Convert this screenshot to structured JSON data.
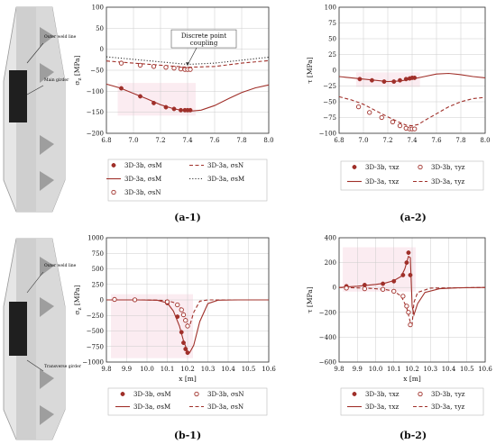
{
  "colors": {
    "accent": "#a0302a",
    "band": "#f7dde6",
    "grid": "#cccccc",
    "axis": "#333333",
    "girder_light": "#e2e2e2",
    "girder_mid": "#bdbdbd",
    "girder_dark": "#222222"
  },
  "illustrations": [
    {
      "labels": [
        "Outer weld line",
        "Main girder"
      ]
    },
    {
      "labels": [
        "Outer weld line",
        "Transverse girder"
      ]
    }
  ],
  "chart_data": [
    {
      "id": "a1",
      "type": "scatter",
      "caption": "(a-1)",
      "xlabel": "",
      "ylabel": "σ_z [MPa]",
      "xlim": [
        6.8,
        8.0
      ],
      "ylim": [
        -200,
        100
      ],
      "xticks": [
        6.8,
        7.0,
        7.2,
        7.4,
        7.6,
        7.8,
        8.0
      ],
      "yticks": [
        -200,
        -150,
        -100,
        -50,
        0,
        50,
        100
      ],
      "xtick_labels": [
        "6.8",
        "7.0",
        "7.2",
        "7.4",
        "7.6",
        "7.8",
        "8.0"
      ],
      "ytick_labels": [
        "−200",
        "−150",
        "−100",
        "−50",
        "0",
        "50",
        "100"
      ],
      "annotation": {
        "text": [
          "Discrete point",
          "coupling"
        ],
        "x": 7.52,
        "y": 27,
        "target_x": 7.4,
        "target_y": -42
      },
      "series": [
        {
          "name": "3D-3b, σsM",
          "style": "dot",
          "points": [
            [
              6.91,
              -93
            ],
            [
              7.05,
              -112
            ],
            [
              7.15,
              -128
            ],
            [
              7.24,
              -138
            ],
            [
              7.3,
              -142
            ],
            [
              7.35,
              -145
            ],
            [
              7.38,
              -145
            ],
            [
              7.4,
              -145
            ],
            [
              7.42,
              -145
            ]
          ]
        },
        {
          "name": "3D-3b, σsN",
          "style": "circle",
          "points": [
            [
              6.91,
              -33
            ],
            [
              7.05,
              -38
            ],
            [
              7.15,
              -41
            ],
            [
              7.24,
              -43
            ],
            [
              7.3,
              -45
            ],
            [
              7.35,
              -47
            ],
            [
              7.38,
              -48
            ],
            [
              7.4,
              -48
            ],
            [
              7.42,
              -48
            ]
          ]
        },
        {
          "name": "3D-3a, σsM",
          "style": "solid",
          "points": [
            [
              6.8,
              -83
            ],
            [
              6.9,
              -92
            ],
            [
              7.0,
              -105
            ],
            [
              7.1,
              -118
            ],
            [
              7.2,
              -132
            ],
            [
              7.3,
              -142
            ],
            [
              7.4,
              -148
            ],
            [
              7.5,
              -145
            ],
            [
              7.6,
              -134
            ],
            [
              7.7,
              -118
            ],
            [
              7.8,
              -103
            ],
            [
              7.9,
              -92
            ],
            [
              8.0,
              -85
            ]
          ]
        },
        {
          "name": "3D-3a, σsN",
          "style": "dashed",
          "points": [
            [
              6.8,
              -28
            ],
            [
              7.0,
              -33
            ],
            [
              7.2,
              -38
            ],
            [
              7.4,
              -43
            ],
            [
              7.6,
              -41
            ],
            [
              7.8,
              -33
            ],
            [
              8.0,
              -27
            ]
          ]
        },
        {
          "name": "3D-3a, σsM",
          "style": "dotted",
          "points": [
            [
              6.8,
              -18
            ],
            [
              7.0,
              -24
            ],
            [
              7.2,
              -30
            ],
            [
              7.4,
              -36
            ],
            [
              7.6,
              -33
            ],
            [
              7.8,
              -26
            ],
            [
              8.0,
              -19
            ]
          ]
        }
      ],
      "legend": [
        {
          "key": "a1_l0",
          "style": "dot",
          "text": "3D-3b, σsM"
        },
        {
          "key": "a1_l1",
          "style": "dashed",
          "text": "3D-3a, σsN"
        },
        {
          "key": "a1_l2",
          "style": "solid",
          "text": "3D-3a, σsM"
        },
        {
          "key": "a1_l3",
          "style": "dotted",
          "text": "3D-3a, σsM"
        },
        {
          "key": "a1_l4",
          "style": "circle",
          "text": "3D-3b, σsN"
        }
      ]
    },
    {
      "id": "a2",
      "type": "scatter",
      "caption": "(a-2)",
      "xlabel": "",
      "ylabel": "τ [MPa]",
      "xlim": [
        6.8,
        8.0
      ],
      "ylim": [
        -100,
        100
      ],
      "xticks": [
        6.8,
        7.0,
        7.2,
        7.4,
        7.6,
        7.8,
        8.0
      ],
      "yticks": [
        -100,
        -75,
        -50,
        -25,
        0,
        25,
        50,
        75,
        100
      ],
      "xtick_labels": [
        "6.8",
        "7.0",
        "7.2",
        "7.4",
        "7.6",
        "7.8",
        "8.0"
      ],
      "ytick_labels": [
        "−100",
        "−75",
        "−50",
        "−25",
        "0",
        "25",
        "50",
        "75",
        "100"
      ],
      "series": [
        {
          "name": "3D-3b, τxz",
          "style": "dot",
          "points": [
            [
              6.97,
              -14
            ],
            [
              7.07,
              -16
            ],
            [
              7.17,
              -18
            ],
            [
              7.25,
              -18
            ],
            [
              7.3,
              -16
            ],
            [
              7.35,
              -14
            ],
            [
              7.38,
              -13
            ],
            [
              7.4,
              -12
            ],
            [
              7.42,
              -12
            ]
          ]
        },
        {
          "name": "3D-3b, τyz",
          "style": "circle",
          "points": [
            [
              6.96,
              -58
            ],
            [
              7.05,
              -67
            ],
            [
              7.15,
              -75
            ],
            [
              7.24,
              -82
            ],
            [
              7.3,
              -88
            ],
            [
              7.35,
              -92
            ],
            [
              7.38,
              -93
            ],
            [
              7.4,
              -93
            ],
            [
              7.42,
              -93
            ]
          ]
        },
        {
          "name": "3D-3a, τxz",
          "style": "solid",
          "points": [
            [
              6.8,
              -10
            ],
            [
              6.9,
              -12
            ],
            [
              7.0,
              -14
            ],
            [
              7.1,
              -16
            ],
            [
              7.2,
              -18
            ],
            [
              7.3,
              -17
            ],
            [
              7.4,
              -14
            ],
            [
              7.5,
              -10
            ],
            [
              7.6,
              -6
            ],
            [
              7.7,
              -5
            ],
            [
              7.8,
              -7
            ],
            [
              7.9,
              -10
            ],
            [
              8.0,
              -12
            ]
          ]
        },
        {
          "name": "3D-3a, τyz",
          "style": "dashed",
          "points": [
            [
              6.8,
              -42
            ],
            [
              6.9,
              -47
            ],
            [
              7.0,
              -54
            ],
            [
              7.1,
              -64
            ],
            [
              7.2,
              -74
            ],
            [
              7.3,
              -83
            ],
            [
              7.35,
              -87
            ],
            [
              7.4,
              -88
            ],
            [
              7.45,
              -86
            ],
            [
              7.5,
              -80
            ],
            [
              7.6,
              -69
            ],
            [
              7.7,
              -58
            ],
            [
              7.8,
              -50
            ],
            [
              7.9,
              -45
            ],
            [
              8.0,
              -43
            ]
          ]
        }
      ],
      "legend": [
        {
          "key": "a2_l0",
          "style": "dot",
          "text": "3D-3b, τxz"
        },
        {
          "key": "a2_l1",
          "style": "circle",
          "text": "3D-3b, τyz"
        },
        {
          "key": "a2_l2",
          "style": "solid",
          "text": "3D-3a, τxz"
        },
        {
          "key": "a2_l3",
          "style": "dashed",
          "text": "3D-3a, τyz"
        }
      ]
    },
    {
      "id": "b1",
      "type": "scatter",
      "caption": "(b-1)",
      "xlabel": "x [m]",
      "ylabel": "σ_z [MPa]",
      "xlim": [
        9.8,
        10.6
      ],
      "ylim": [
        -1000,
        1000
      ],
      "xticks": [
        9.8,
        9.9,
        10.0,
        10.1,
        10.2,
        10.3,
        10.4,
        10.5,
        10.6
      ],
      "yticks": [
        -1000,
        -750,
        -500,
        -250,
        0,
        250,
        500,
        750,
        1000
      ],
      "xtick_labels": [
        "9.8",
        "9.9",
        "10.0",
        "10.1",
        "10.2",
        "10.3",
        "10.4",
        "10.5",
        "10.6"
      ],
      "ytick_labels": [
        "−1000",
        "−750",
        "−500",
        "−250",
        "0",
        "250",
        "500",
        "750",
        "1000"
      ],
      "series": [
        {
          "name": "3D-3b, σsM",
          "style": "dot",
          "points": [
            [
              9.84,
              5
            ],
            [
              9.94,
              0
            ],
            [
              10.1,
              -50
            ],
            [
              10.15,
              -270
            ],
            [
              10.17,
              -520
            ],
            [
              10.18,
              -690
            ],
            [
              10.19,
              -790
            ],
            [
              10.2,
              -850
            ]
          ]
        },
        {
          "name": "3D-3b, σsN",
          "style": "circle",
          "points": [
            [
              9.84,
              8
            ],
            [
              9.94,
              2
            ],
            [
              10.1,
              -30
            ],
            [
              10.15,
              -80
            ],
            [
              10.17,
              -160
            ],
            [
              10.18,
              -240
            ],
            [
              10.19,
              -330
            ],
            [
              10.2,
              -420
            ]
          ]
        },
        {
          "name": "3D-3a, σsM",
          "style": "solid",
          "points": [
            [
              9.8,
              0
            ],
            [
              9.95,
              0
            ],
            [
              10.05,
              -5
            ],
            [
              10.1,
              -50
            ],
            [
              10.13,
              -180
            ],
            [
              10.16,
              -420
            ],
            [
              10.18,
              -660
            ],
            [
              10.2,
              -830
            ],
            [
              10.21,
              -850
            ],
            [
              10.23,
              -730
            ],
            [
              10.26,
              -350
            ],
            [
              10.3,
              -60
            ],
            [
              10.35,
              -5
            ],
            [
              10.45,
              0
            ],
            [
              10.6,
              0
            ]
          ]
        },
        {
          "name": "3D-3a, σsN",
          "style": "dashed",
          "points": [
            [
              9.8,
              0
            ],
            [
              10.0,
              0
            ],
            [
              10.1,
              -10
            ],
            [
              10.15,
              -60
            ],
            [
              10.18,
              -200
            ],
            [
              10.2,
              -400
            ],
            [
              10.21,
              -420
            ],
            [
              10.23,
              -200
            ],
            [
              10.26,
              -20
            ],
            [
              10.3,
              0
            ],
            [
              10.6,
              0
            ]
          ]
        }
      ],
      "legend": [
        {
          "key": "b1_l0",
          "style": "dot",
          "text": "3D-3b, σsM"
        },
        {
          "key": "b1_l1",
          "style": "circle",
          "text": "3D-3b, σsN"
        },
        {
          "key": "b1_l2",
          "style": "solid",
          "text": "3D-3a, σsM"
        },
        {
          "key": "b1_l3",
          "style": "dashed",
          "text": "3D-3a, σsN"
        }
      ]
    },
    {
      "id": "b2",
      "type": "scatter",
      "caption": "(b-2)",
      "xlabel": "x [m]",
      "ylabel": "τ [MPa]",
      "xlim": [
        9.8,
        10.6
      ],
      "ylim": [
        -600,
        400
      ],
      "xticks": [
        9.8,
        9.9,
        10.0,
        10.1,
        10.2,
        10.3,
        10.4,
        10.5,
        10.6
      ],
      "yticks": [
        -600,
        -400,
        -200,
        0,
        200,
        400
      ],
      "xtick_labels": [
        "9.8",
        "9.9",
        "10.0",
        "10.1",
        "10.2",
        "10.3",
        "10.4",
        "10.5",
        "10.6"
      ],
      "ytick_labels": [
        "−600",
        "−400",
        "−200",
        "0",
        "200",
        "400"
      ],
      "series": [
        {
          "name": "3D-3b, τxz",
          "style": "dot",
          "points": [
            [
              9.84,
              10
            ],
            [
              9.94,
              20
            ],
            [
              10.04,
              30
            ],
            [
              10.1,
              50
            ],
            [
              10.15,
              100
            ],
            [
              10.17,
              200
            ],
            [
              10.18,
              280
            ],
            [
              10.19,
              100
            ]
          ]
        },
        {
          "name": "3D-3b, τyz",
          "style": "circle",
          "points": [
            [
              9.84,
              -5
            ],
            [
              9.94,
              -10
            ],
            [
              10.04,
              -15
            ],
            [
              10.1,
              -30
            ],
            [
              10.15,
              -70
            ],
            [
              10.17,
              -150
            ],
            [
              10.18,
              -200
            ],
            [
              10.19,
              -300
            ]
          ]
        },
        {
          "name": "3D-3a, τxz",
          "style": "solid",
          "points": [
            [
              9.8,
              0
            ],
            [
              9.9,
              10
            ],
            [
              10.0,
              25
            ],
            [
              10.05,
              35
            ],
            [
              10.1,
              55
            ],
            [
              10.14,
              90
            ],
            [
              10.16,
              150
            ],
            [
              10.18,
              250
            ],
            [
              10.19,
              240
            ],
            [
              10.2,
              -150
            ],
            [
              10.21,
              -220
            ],
            [
              10.23,
              -130
            ],
            [
              10.27,
              -40
            ],
            [
              10.35,
              -10
            ],
            [
              10.45,
              -3
            ],
            [
              10.6,
              0
            ]
          ]
        },
        {
          "name": "3D-3a, τyz",
          "style": "dashed",
          "points": [
            [
              9.8,
              0
            ],
            [
              9.95,
              -5
            ],
            [
              10.05,
              -15
            ],
            [
              10.1,
              -30
            ],
            [
              10.14,
              -70
            ],
            [
              10.17,
              -160
            ],
            [
              10.19,
              -280
            ],
            [
              10.2,
              -300
            ],
            [
              10.21,
              -120
            ],
            [
              10.23,
              -40
            ],
            [
              10.3,
              -5
            ],
            [
              10.6,
              0
            ]
          ]
        }
      ],
      "legend": [
        {
          "key": "b2_l0",
          "style": "dot",
          "text": "3D-3b, τxz"
        },
        {
          "key": "b2_l1",
          "style": "circle",
          "text": "3D-3b, τyz"
        },
        {
          "key": "b2_l2",
          "style": "solid",
          "text": "3D-3a, τxz"
        },
        {
          "key": "b2_l3",
          "style": "dashed",
          "text": "3D-3a, τyz"
        }
      ]
    }
  ]
}
